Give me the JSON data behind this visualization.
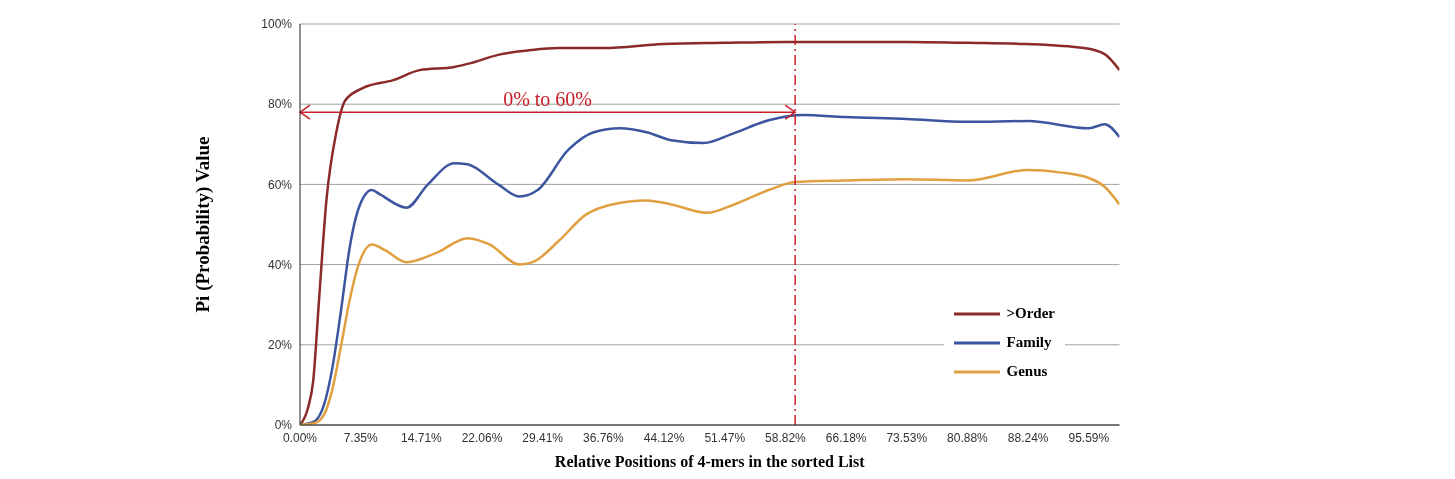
{
  "chart_data": {
    "type": "line",
    "xlabel": "Relative Positions of 4-mers in the sorted List",
    "ylabel": "Pi (Probability) Value",
    "xlim": [
      0,
      99.3
    ],
    "ylim": [
      0,
      100
    ],
    "xticks": [
      {
        "value": 0,
        "label": "0.00%"
      },
      {
        "value": 7.35,
        "label": "7.35%"
      },
      {
        "value": 14.71,
        "label": "14.71%"
      },
      {
        "value": 22.06,
        "label": "22.06%"
      },
      {
        "value": 29.41,
        "label": "29.41%"
      },
      {
        "value": 36.76,
        "label": "36.76%"
      },
      {
        "value": 44.12,
        "label": "44.12%"
      },
      {
        "value": 51.47,
        "label": "51.47%"
      },
      {
        "value": 58.82,
        "label": "58.82%"
      },
      {
        "value": 66.18,
        "label": "66.18%"
      },
      {
        "value": 73.53,
        "label": "73.53%"
      },
      {
        "value": 80.88,
        "label": "80.88%"
      },
      {
        "value": 88.24,
        "label": "88.24%"
      },
      {
        "value": 95.59,
        "label": "95.59%"
      }
    ],
    "yticks": [
      {
        "value": 0,
        "label": "0%"
      },
      {
        "value": 20,
        "label": "20%"
      },
      {
        "value": 40,
        "label": "40%"
      },
      {
        "value": 60,
        "label": "60%"
      },
      {
        "value": 80,
        "label": "80%"
      },
      {
        "value": 100,
        "label": "100%"
      }
    ],
    "grid": "y",
    "legend": "bottom right",
    "marker": "none",
    "line_style": "solid",
    "series": [
      {
        "name": ">Order",
        "color": "#8b2a2a",
        "x": [
          0,
          1,
          1.6,
          2.3,
          3.2,
          4.4,
          5.5,
          7.6,
          11.3,
          14.5,
          18.7,
          20.8,
          24,
          28,
          31.4,
          36.8,
          44,
          51.5,
          58.8,
          66,
          73.5,
          80.9,
          88,
          95,
          97.5,
          99.3
        ],
        "values": [
          0,
          4.5,
          11,
          31,
          56,
          73,
          81,
          84,
          86,
          88.5,
          89.3,
          90.3,
          92.3,
          93.5,
          94,
          94,
          95,
          95.3,
          95.5,
          95.5,
          95.5,
          95.3,
          95,
          94,
          92.5,
          88.5
        ]
      },
      {
        "name": "Family",
        "color": "#3c55a0",
        "x": [
          0,
          1.8,
          2.9,
          3.9,
          5,
          6,
          7.1,
          8.7,
          9.7,
          12.9,
          15.5,
          18.7,
          20.3,
          24,
          26.6,
          28.8,
          32.5,
          35.6,
          38.8,
          42,
          45,
          48.9,
          52.6,
          56.8,
          61,
          66,
          73.5,
          80.9,
          88.2,
          95.6,
          97.5,
          99.3
        ],
        "values": [
          0,
          1,
          5,
          14,
          29,
          44,
          54,
          58.6,
          57.5,
          54.2,
          60,
          65.3,
          65,
          60,
          57,
          58.6,
          68.6,
          73,
          74,
          73,
          71,
          70.3,
          72.8,
          76,
          77.3,
          76.8,
          76.3,
          75.6,
          75.8,
          74,
          75,
          71.8
        ]
      },
      {
        "name": "Genus",
        "color": "#e0a040",
        "x": [
          0,
          1.8,
          2.9,
          3.9,
          5,
          6,
          7.1,
          8.7,
          10.3,
          12.9,
          16.6,
          20.3,
          23,
          26.6,
          28.2,
          31.4,
          34.6,
          37.8,
          42,
          45,
          49.4,
          52.6,
          56.8,
          60,
          66,
          73.5,
          80.9,
          88.2,
          92,
          95.6,
          97.5,
          99.3
        ],
        "values": [
          0,
          0.5,
          2.5,
          8.7,
          20,
          31,
          40,
          45,
          43.6,
          40.6,
          43,
          46.6,
          45,
          40,
          40.6,
          46,
          52.4,
          55,
          56,
          55,
          52.9,
          55,
          58.6,
          60.6,
          61,
          61.3,
          61,
          63.6,
          63,
          61.6,
          59.4,
          55
        ]
      }
    ],
    "ref_lines": [
      {
        "axis": "x",
        "value": 60,
        "color": "#c8202a",
        "line_style": "dashdot"
      },
      {
        "axis": "y",
        "value": 78,
        "label": "0% to 60%",
        "color": "#c8202a"
      }
    ]
  }
}
